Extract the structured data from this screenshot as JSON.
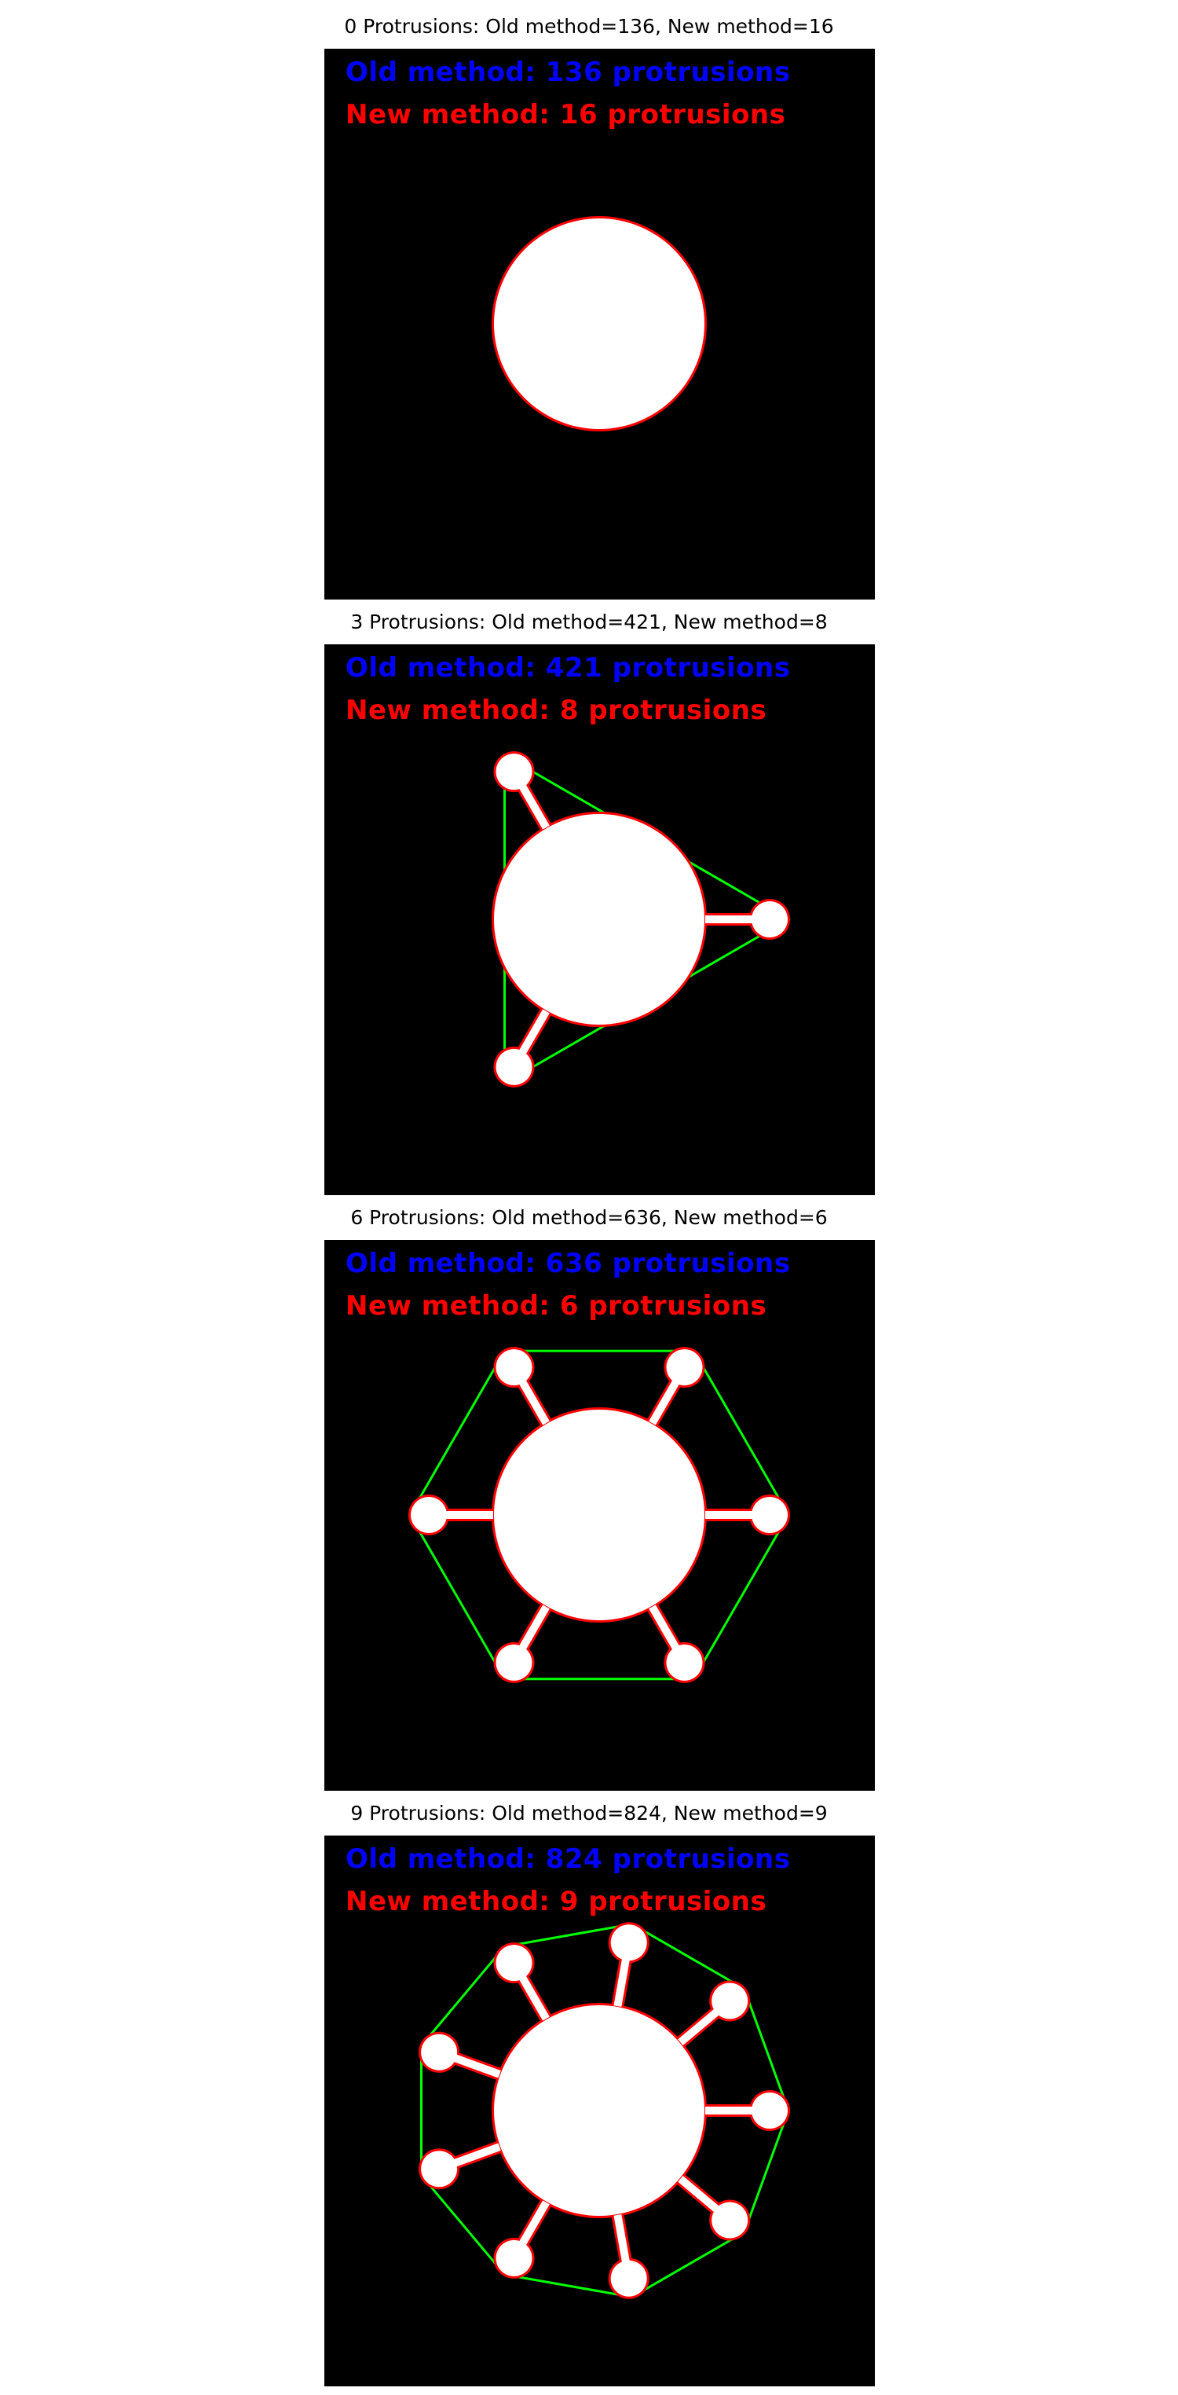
{
  "colors": {
    "background": "#ffffff",
    "image_bg": "#000000",
    "shape_fill": "#ffffff",
    "contour": "#ff0000",
    "hull": "#00ff00",
    "old_text": "#0000ff",
    "new_text": "#ff0000"
  },
  "panels": [
    {
      "title": "0 Protrusions: Old method=136, New method=16",
      "old_label": "Old method: 136 protrusions",
      "new_label": "New method: 16 protrusions",
      "protrusions": 0
    },
    {
      "title": "3 Protrusions: Old method=421, New method=8",
      "old_label": "Old method: 421 protrusions",
      "new_label": "New method: 8 protrusions",
      "protrusions": 3
    },
    {
      "title": "6 Protrusions: Old method=636, New method=6",
      "old_label": "Old method: 636 protrusions",
      "new_label": "New method: 6 protrusions",
      "protrusions": 6
    },
    {
      "title": "9 Protrusions: Old method=824, New method=9",
      "old_label": "Old method: 824 protrusions",
      "new_label": "New method: 9 protrusions",
      "protrusions": 9
    }
  ]
}
